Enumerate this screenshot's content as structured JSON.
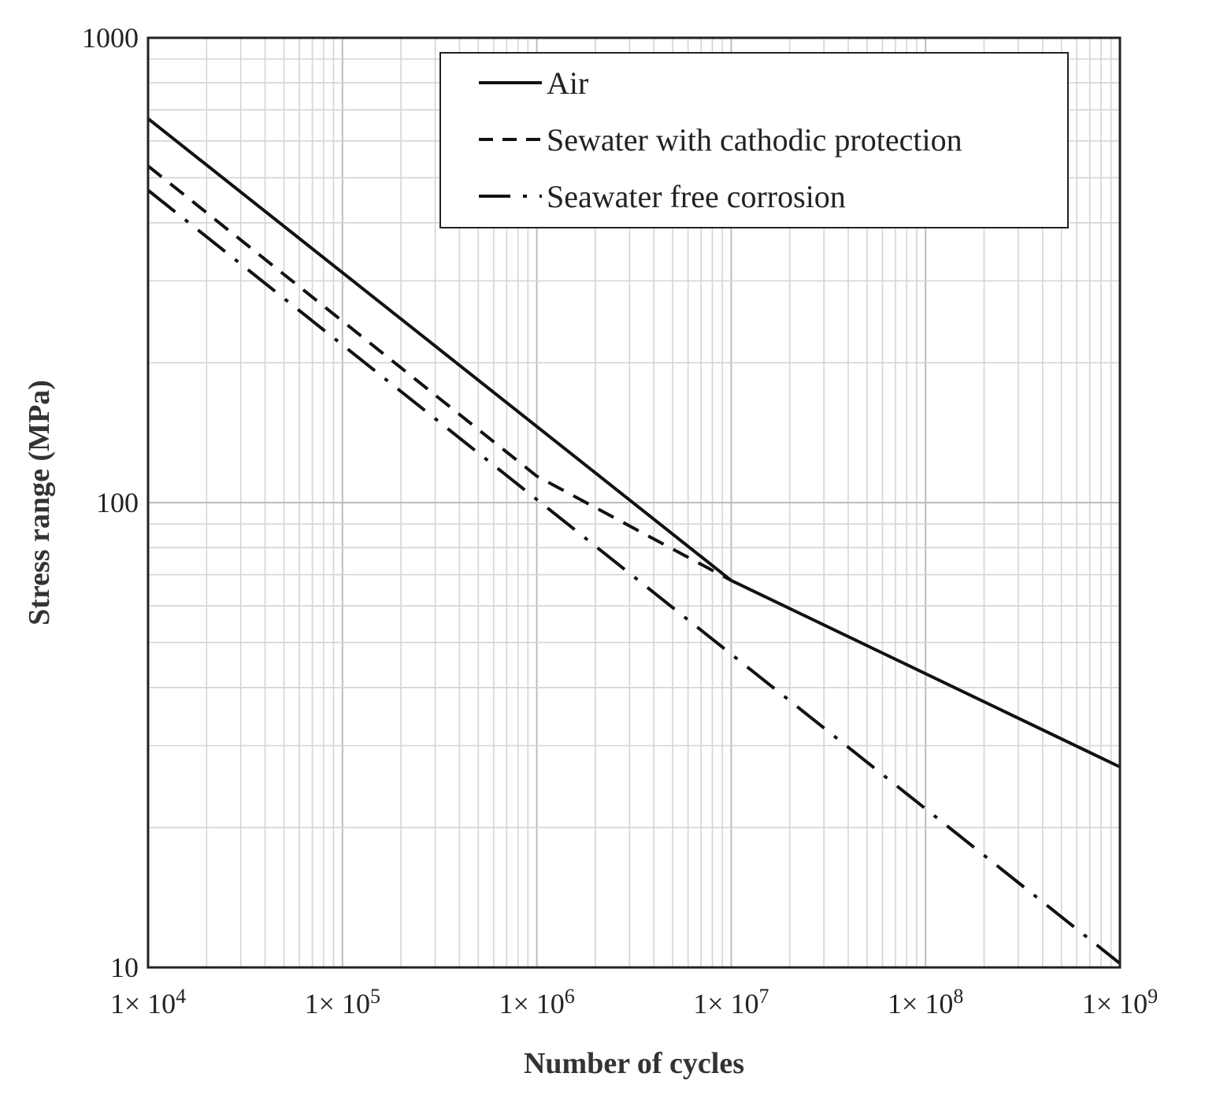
{
  "chart_data": {
    "type": "line",
    "xlabel": "Number of cycles",
    "ylabel": "Stress range (MPa)",
    "x_scale": "log",
    "y_scale": "log",
    "xlim": [
      10000,
      1000000000
    ],
    "ylim": [
      10,
      1000
    ],
    "x_ticks": [
      10000,
      100000,
      1000000,
      10000000,
      100000000,
      1000000000
    ],
    "x_tick_labels": [
      {
        "base": "1× 10",
        "exp": "4"
      },
      {
        "base": "1× 10",
        "exp": "5"
      },
      {
        "base": "1× 10",
        "exp": "6"
      },
      {
        "base": "1× 10",
        "exp": "7"
      },
      {
        "base": "1× 10",
        "exp": "8"
      },
      {
        "base": "1× 10",
        "exp": "9"
      }
    ],
    "y_ticks": [
      10,
      100,
      1000
    ],
    "y_tick_labels": [
      "10",
      "100",
      "1000"
    ],
    "grid": true,
    "legend_position": "top-right",
    "series": [
      {
        "name": "Air",
        "line_style": "solid",
        "x": [
          10000,
          10000000,
          1000000000
        ],
        "y": [
          670,
          68,
          27
        ]
      },
      {
        "name": "Sewater with cathodic protection",
        "line_style": "dashed",
        "x": [
          10000,
          1000000,
          10000000
        ],
        "y": [
          530,
          114,
          68
        ]
      },
      {
        "name": "Seawater free corrosion",
        "line_style": "dash-dot",
        "x": [
          10000,
          1000000000
        ],
        "y": [
          470,
          10.2
        ]
      }
    ]
  }
}
